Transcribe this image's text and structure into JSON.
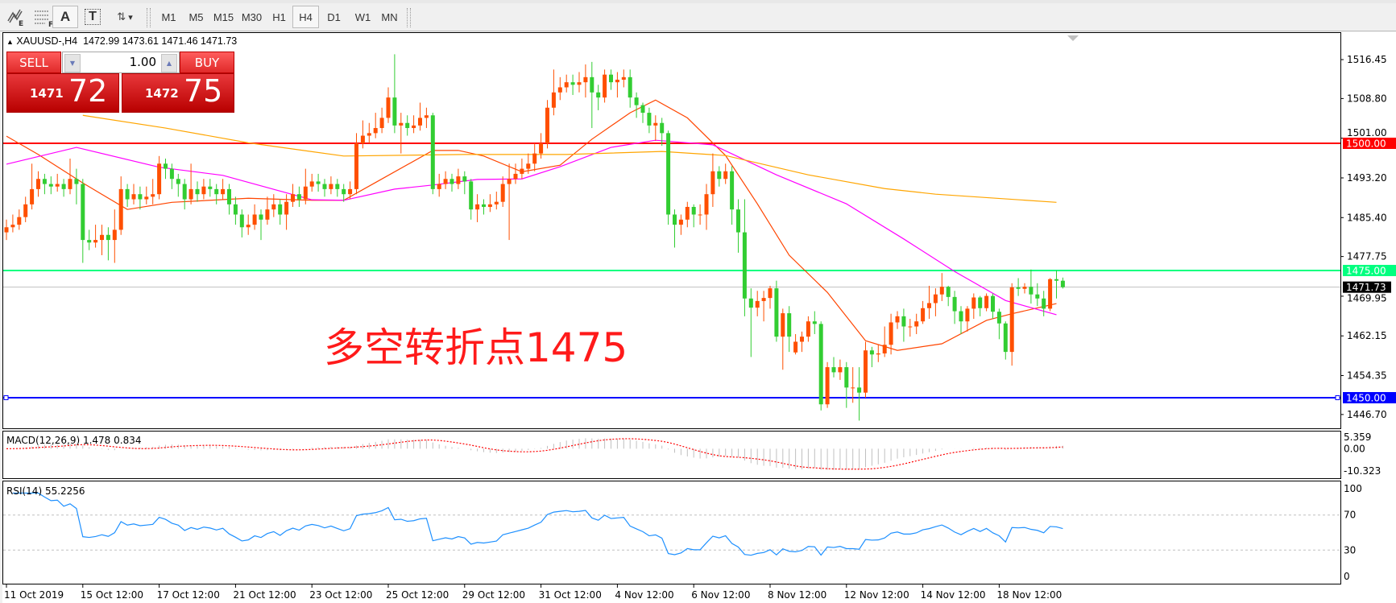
{
  "toolbar": {
    "tools": [
      {
        "icon": "elliott-wave-icon",
        "label": "E"
      },
      {
        "icon": "fibonacci-icon",
        "label": "F"
      },
      {
        "icon": "text-icon",
        "label": "A"
      },
      {
        "icon": "text-label-icon",
        "label": "T"
      },
      {
        "icon": "arrows-dropdown-icon",
        "label": "▾"
      }
    ],
    "timeframes": [
      "M1",
      "M5",
      "M15",
      "M30",
      "H1",
      "H4",
      "D1",
      "W1",
      "MN"
    ],
    "active_timeframe": "H4"
  },
  "chart": {
    "symbol_header": "XAUUSD-,H4",
    "ohlc_header": "1472.99 1473.61 1471.46 1471.73",
    "annotation": "多空转折点1475",
    "colors": {
      "bull": "#ff4f00",
      "bear": "#32cd32",
      "fast_ma": "#ff4500",
      "mid_ma": "#ff00ff",
      "slow_ma": "#ffa500",
      "line_1500": "#ff0000",
      "line_1475": "#00ff7f",
      "line_1450": "#0000ff",
      "rsi": "#1e90ff",
      "macd_signal": "#ff0000",
      "macd_hist": "#c0c0c0"
    }
  },
  "trade_panel": {
    "sell_label": "SELL",
    "buy_label": "BUY",
    "volume": "1.00",
    "sell_price_prefix": "1471",
    "sell_price_big": "72",
    "buy_price_prefix": "1472",
    "buy_price_big": "75"
  },
  "price_axis": {
    "ticks": [
      "1516.45",
      "1508.80",
      "1501.00",
      "1493.20",
      "1485.40",
      "1477.75",
      "1469.95",
      "1462.15",
      "1454.35",
      "1446.70"
    ],
    "levels": [
      {
        "label": "1500.00",
        "price": 1500.0,
        "color": "#ff0000"
      },
      {
        "label": "1475.00",
        "price": 1475.0,
        "color": "#00ff7f"
      },
      {
        "label": "1450.00",
        "price": 1450.0,
        "color": "#0000ff"
      }
    ],
    "current": {
      "label": "1471.73",
      "price": 1471.73
    }
  },
  "macd": {
    "title": "MACD(12,26,9) 1.478 0.834",
    "ticks": [
      "5.359",
      "0.00",
      "-10.323"
    ],
    "range": [
      -10.323,
      5.359
    ]
  },
  "rsi": {
    "title": "RSI(14) 55.2256",
    "ticks": [
      "100",
      "70",
      "30",
      "0"
    ],
    "levels": [
      70,
      30
    ]
  },
  "time_axis": [
    "11 Oct 2019",
    "15 Oct 12:00",
    "17 Oct 12:00",
    "21 Oct 12:00",
    "23 Oct 12:00",
    "25 Oct 12:00",
    "29 Oct 12:00",
    "31 Oct 12:00",
    "4 Nov 12:00",
    "6 Nov 12:00",
    "8 Nov 12:00",
    "12 Nov 12:00",
    "14 Nov 12:00",
    "18 Nov 12:00"
  ],
  "chart_data": {
    "type": "candlestick",
    "timeframe": "H4",
    "ylim": [
      1442.5,
      1521
    ],
    "bars_ohlc": [
      [
        1482.5,
        1485,
        1481,
        1483.5
      ],
      [
        1483.5,
        1486,
        1482.5,
        1484
      ],
      [
        1484,
        1487,
        1483,
        1485.5
      ],
      [
        1485.5,
        1489.5,
        1484.5,
        1488
      ],
      [
        1488,
        1496,
        1487,
        1491
      ],
      [
        1491,
        1494.5,
        1489.5,
        1493
      ],
      [
        1493,
        1494,
        1490,
        1492
      ],
      [
        1492,
        1493.5,
        1490,
        1491.5
      ],
      [
        1491.5,
        1494,
        1490.5,
        1492
      ],
      [
        1492,
        1493,
        1489.5,
        1491
      ],
      [
        1491,
        1497,
        1490,
        1493
      ],
      [
        1493,
        1495,
        1488,
        1492
      ],
      [
        1492,
        1493,
        1476.5,
        1481
      ],
      [
        1481,
        1483,
        1479,
        1480.5
      ],
      [
        1480.5,
        1484,
        1479.5,
        1481
      ],
      [
        1481,
        1484,
        1478,
        1482
      ],
      [
        1482,
        1483.5,
        1477,
        1481
      ],
      [
        1481,
        1487,
        1476.5,
        1483
      ],
      [
        1483,
        1493.5,
        1482,
        1491
      ],
      [
        1491,
        1492,
        1487.5,
        1489
      ],
      [
        1489,
        1492,
        1488,
        1490
      ],
      [
        1490,
        1491.5,
        1487,
        1489
      ],
      [
        1489,
        1491.5,
        1488,
        1489.5
      ],
      [
        1489.5,
        1493,
        1488,
        1490
      ],
      [
        1490,
        1497.5,
        1489,
        1496
      ],
      [
        1496,
        1497,
        1493,
        1495
      ],
      [
        1495,
        1496,
        1491,
        1493
      ],
      [
        1493,
        1494,
        1489.5,
        1492
      ],
      [
        1492,
        1493,
        1487,
        1489
      ],
      [
        1489,
        1496,
        1488,
        1491
      ],
      [
        1491,
        1492.5,
        1488.5,
        1490
      ],
      [
        1490,
        1493,
        1489,
        1491.5
      ],
      [
        1491.5,
        1493,
        1489.5,
        1491
      ],
      [
        1491,
        1492,
        1488,
        1490
      ],
      [
        1490,
        1493,
        1489,
        1491
      ],
      [
        1491,
        1492,
        1486,
        1488
      ],
      [
        1488,
        1489.5,
        1484,
        1486
      ],
      [
        1486,
        1487,
        1481.5,
        1483.5
      ],
      [
        1483.5,
        1486,
        1482,
        1484
      ],
      [
        1484,
        1488,
        1483,
        1486
      ],
      [
        1486,
        1487,
        1481,
        1485
      ],
      [
        1485,
        1489.5,
        1484,
        1487
      ],
      [
        1487,
        1490,
        1485.5,
        1488
      ],
      [
        1488,
        1489,
        1484,
        1486
      ],
      [
        1486,
        1490,
        1483,
        1488.5
      ],
      [
        1488.5,
        1492,
        1487.5,
        1490
      ],
      [
        1490,
        1491.5,
        1487.5,
        1489
      ],
      [
        1489,
        1495,
        1488,
        1491.5
      ],
      [
        1491.5,
        1494,
        1490.5,
        1492.5
      ],
      [
        1492.5,
        1494,
        1490.5,
        1492
      ],
      [
        1492,
        1493,
        1489.5,
        1491
      ],
      [
        1491,
        1493.5,
        1490,
        1492
      ],
      [
        1492,
        1493,
        1489.5,
        1491
      ],
      [
        1491,
        1492,
        1488.5,
        1490
      ],
      [
        1490,
        1492.5,
        1489,
        1491
      ],
      [
        1491,
        1502,
        1490,
        1500
      ],
      [
        1500,
        1504.5,
        1499,
        1501.5
      ],
      [
        1501.5,
        1504,
        1500,
        1502
      ],
      [
        1502,
        1506,
        1501,
        1503
      ],
      [
        1503,
        1507,
        1502,
        1505
      ],
      [
        1505,
        1511,
        1504,
        1509
      ],
      [
        1509,
        1517.5,
        1502,
        1503.5
      ],
      [
        1503.5,
        1506,
        1498,
        1504
      ],
      [
        1504,
        1505.5,
        1501.5,
        1503
      ],
      [
        1503,
        1505.5,
        1502,
        1503.5
      ],
      [
        1503.5,
        1508,
        1502.5,
        1505
      ],
      [
        1505,
        1507,
        1503,
        1505.5
      ],
      [
        1505.5,
        1506,
        1490,
        1491
      ],
      [
        1491,
        1494,
        1489.5,
        1492
      ],
      [
        1492,
        1494.5,
        1491,
        1493
      ],
      [
        1493,
        1494,
        1490.5,
        1492
      ],
      [
        1492,
        1495,
        1491,
        1493.5
      ],
      [
        1493.5,
        1494.5,
        1490,
        1492.5
      ],
      [
        1492.5,
        1493,
        1485,
        1487
      ],
      [
        1487,
        1490,
        1484.5,
        1488
      ],
      [
        1488,
        1489,
        1486,
        1487.5
      ],
      [
        1487.5,
        1490,
        1486.5,
        1488
      ],
      [
        1488,
        1490.5,
        1487,
        1488.5
      ],
      [
        1488.5,
        1493.5,
        1487.5,
        1492
      ],
      [
        1492,
        1496,
        1481,
        1493
      ],
      [
        1493,
        1496,
        1492,
        1494
      ],
      [
        1494,
        1497,
        1493,
        1495
      ],
      [
        1495,
        1498,
        1494,
        1496
      ],
      [
        1496,
        1500,
        1494.5,
        1498
      ],
      [
        1498,
        1502,
        1497,
        1500
      ],
      [
        1500,
        1508.5,
        1499,
        1507
      ],
      [
        1507,
        1514.5,
        1505.5,
        1510
      ],
      [
        1510,
        1513,
        1508.5,
        1511
      ],
      [
        1511,
        1513.5,
        1510,
        1512
      ],
      [
        1512,
        1513.5,
        1509.5,
        1511.5
      ],
      [
        1511.5,
        1514,
        1510,
        1512
      ],
      [
        1512,
        1515.5,
        1509,
        1513
      ],
      [
        1513,
        1516,
        1503,
        1510
      ],
      [
        1510,
        1511.5,
        1506.5,
        1509
      ],
      [
        1509,
        1514.5,
        1508,
        1513.5
      ],
      [
        1513.5,
        1514.5,
        1510.5,
        1512
      ],
      [
        1512,
        1514,
        1509,
        1512.5
      ],
      [
        1512.5,
        1514.5,
        1511,
        1513
      ],
      [
        1513,
        1514.5,
        1507,
        1509
      ],
      [
        1509,
        1510,
        1505,
        1507.5
      ],
      [
        1507.5,
        1508,
        1504,
        1506
      ],
      [
        1506,
        1507,
        1502,
        1503.5
      ],
      [
        1503.5,
        1505.5,
        1500.5,
        1504
      ],
      [
        1504,
        1505,
        1499.5,
        1502
      ],
      [
        1502,
        1502.5,
        1484,
        1486
      ],
      [
        1486,
        1487,
        1479.5,
        1484
      ],
      [
        1484,
        1486,
        1482,
        1485
      ],
      [
        1485,
        1488.5,
        1483.5,
        1487.5
      ],
      [
        1487.5,
        1488,
        1483.5,
        1486
      ],
      [
        1486,
        1488,
        1484,
        1486
      ],
      [
        1486,
        1492,
        1483,
        1490
      ],
      [
        1490,
        1498,
        1487.5,
        1494.5
      ],
      [
        1494.5,
        1495.5,
        1491.5,
        1493
      ],
      [
        1493,
        1496,
        1492,
        1494.5
      ],
      [
        1494.5,
        1495.5,
        1484,
        1487
      ],
      [
        1487,
        1489,
        1478.5,
        1482.5
      ],
      [
        1482.5,
        1489,
        1466,
        1469.5
      ],
      [
        1469.5,
        1471.5,
        1458,
        1467.7
      ],
      [
        1467.7,
        1471,
        1466,
        1469
      ],
      [
        1469,
        1471,
        1465,
        1469.6
      ],
      [
        1469.6,
        1472,
        1467.5,
        1471.5
      ],
      [
        1471.5,
        1473,
        1461,
        1462
      ],
      [
        1462,
        1467.5,
        1455.5,
        1466.6
      ],
      [
        1466.6,
        1468,
        1459,
        1462
      ],
      [
        1458.9,
        1462.5,
        1458.5,
        1461
      ],
      [
        1461,
        1463,
        1459,
        1462
      ],
      [
        1462,
        1466,
        1461,
        1465
      ],
      [
        1465,
        1467,
        1462.5,
        1464.5
      ],
      [
        1464.5,
        1465,
        1447.5,
        1448.7
      ],
      [
        1448.7,
        1457,
        1448,
        1456
      ],
      [
        1456,
        1458,
        1454,
        1455
      ],
      [
        1455,
        1457.5,
        1453.5,
        1456
      ],
      [
        1456,
        1457,
        1448,
        1452
      ],
      [
        1452,
        1456,
        1449,
        1452
      ],
      [
        1452,
        1456,
        1445.5,
        1451
      ],
      [
        1451,
        1461,
        1450,
        1459.3
      ],
      [
        1459.3,
        1460,
        1456,
        1458.5
      ],
      [
        1458.5,
        1460.5,
        1457,
        1458.7
      ],
      [
        1458.7,
        1464,
        1458,
        1460.4
      ],
      [
        1460.4,
        1466.5,
        1458.5,
        1464.8
      ],
      [
        1464.8,
        1467,
        1463.5,
        1466
      ],
      [
        1466,
        1467.5,
        1461,
        1464
      ],
      [
        1464,
        1465.5,
        1462,
        1464
      ],
      [
        1464,
        1466.5,
        1462.5,
        1465
      ],
      [
        1465,
        1469,
        1464.5,
        1467.6
      ],
      [
        1467.6,
        1472,
        1465.5,
        1468.6
      ],
      [
        1468.6,
        1471.5,
        1466,
        1470.3
      ],
      [
        1470.3,
        1474.5,
        1469,
        1471.8
      ],
      [
        1471.8,
        1472,
        1468,
        1469.8
      ],
      [
        1469.8,
        1471,
        1464.5,
        1467
      ],
      [
        1467,
        1468,
        1462.5,
        1465
      ],
      [
        1465,
        1468,
        1463,
        1467.5
      ],
      [
        1467.5,
        1470.5,
        1465.5,
        1469.7
      ],
      [
        1469.7,
        1470,
        1466,
        1467.6
      ],
      [
        1467.6,
        1470.5,
        1467,
        1470
      ],
      [
        1470,
        1470.5,
        1465.5,
        1466.9
      ],
      [
        1466.9,
        1467.5,
        1461.5,
        1464.6
      ],
      [
        1464.6,
        1465,
        1457.5,
        1459
      ],
      [
        1459,
        1472.5,
        1456.3,
        1471.7
      ],
      [
        1471.7,
        1473.5,
        1470,
        1471.4
      ],
      [
        1471.4,
        1472.5,
        1470.5,
        1471.8
      ],
      [
        1471.8,
        1475.2,
        1468.5,
        1470.3
      ],
      [
        1470.3,
        1472.5,
        1468,
        1469.5
      ],
      [
        1469.5,
        1471,
        1466,
        1467.5
      ],
      [
        1467.5,
        1473.5,
        1467,
        1473.3
      ],
      [
        1473.3,
        1475,
        1469.5,
        1472.99
      ],
      [
        1472.99,
        1473.61,
        1471.46,
        1471.73
      ]
    ],
    "moving_averages": [
      {
        "role": "fast",
        "points": [
          [
            0,
            1501.4
          ],
          [
            5,
            1497.8
          ],
          [
            12,
            1492.2
          ],
          [
            19,
            1487
          ],
          [
            26,
            1488.4
          ],
          [
            38,
            1489.2
          ],
          [
            48,
            1488.8
          ],
          [
            53,
            1488.8
          ],
          [
            58,
            1492.3
          ],
          [
            67,
            1498.6
          ],
          [
            71,
            1498.6
          ],
          [
            75,
            1497.5
          ],
          [
            81,
            1494.4
          ],
          [
            87,
            1495.7
          ],
          [
            92,
            1500.8
          ],
          [
            98,
            1506
          ],
          [
            102,
            1508.5
          ],
          [
            107,
            1505
          ],
          [
            113,
            1497.6
          ],
          [
            118,
            1488.1
          ],
          [
            123,
            1478
          ],
          [
            129,
            1470.7
          ],
          [
            135,
            1461.2
          ],
          [
            140,
            1459.3
          ],
          [
            147,
            1460.6
          ],
          [
            154,
            1465.2
          ],
          [
            158,
            1466.5
          ],
          [
            165,
            1468.5
          ]
        ]
      },
      {
        "role": "medium",
        "points": [
          [
            0,
            1495.9
          ],
          [
            11,
            1499.2
          ],
          [
            24,
            1495.3
          ],
          [
            34,
            1493.7
          ],
          [
            48,
            1488.9
          ],
          [
            53,
            1488.8
          ],
          [
            61,
            1491
          ],
          [
            67,
            1491.8
          ],
          [
            74,
            1492.9
          ],
          [
            81,
            1493
          ],
          [
            87,
            1495.4
          ],
          [
            95,
            1499.2
          ],
          [
            102,
            1500.6
          ],
          [
            111,
            1499.7
          ],
          [
            121,
            1493.8
          ],
          [
            132,
            1488.1
          ],
          [
            141,
            1481.2
          ],
          [
            149,
            1474.8
          ],
          [
            157,
            1469.1
          ],
          [
            165,
            1466.3
          ]
        ]
      },
      {
        "role": "slow",
        "points": [
          [
            12,
            1505.5
          ],
          [
            25,
            1503
          ],
          [
            38,
            1500.1
          ],
          [
            53,
            1497.5
          ],
          [
            72,
            1497.8
          ],
          [
            88,
            1497.8
          ],
          [
            103,
            1498.4
          ],
          [
            113,
            1497.6
          ],
          [
            126,
            1493.8
          ],
          [
            138,
            1491.1
          ],
          [
            146,
            1490
          ],
          [
            165,
            1488.4
          ]
        ]
      }
    ],
    "horizontal_levels": [
      1500,
      1475,
      1450
    ],
    "time_label_bar_step": 12
  }
}
